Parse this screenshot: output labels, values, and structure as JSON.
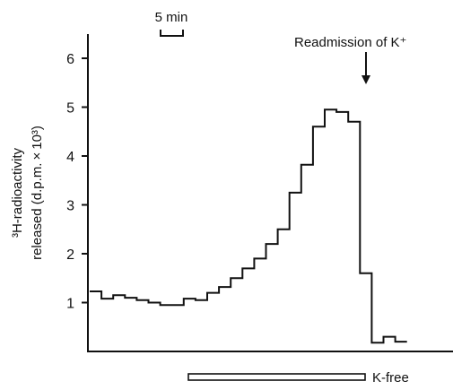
{
  "chart_data": {
    "type": "line",
    "style": "step",
    "ylabel_line1": "³H-radioactivity",
    "ylabel_line2": "released (d.p.m. × 10³)",
    "xlabel": "",
    "ylim": [
      0,
      6
    ],
    "yticks": [
      "1",
      "2",
      "3",
      "4",
      "5",
      "6"
    ],
    "scale_bar_label": "5 min",
    "annotation": "Readmission of K⁺",
    "condition_label": "K-free",
    "grid": false,
    "series": [
      {
        "values": [
          1.23,
          1.08,
          1.15,
          1.1,
          1.05,
          1.0,
          0.95,
          0.95,
          1.08,
          1.05,
          1.2,
          1.32,
          1.5,
          1.7,
          1.9,
          2.2,
          2.5,
          3.25,
          3.82,
          4.6,
          4.95,
          4.9,
          4.7,
          1.6,
          0.18,
          0.3,
          0.2
        ]
      }
    ]
  },
  "colors": {
    "line": "#111111",
    "background": "#ffffff"
  }
}
